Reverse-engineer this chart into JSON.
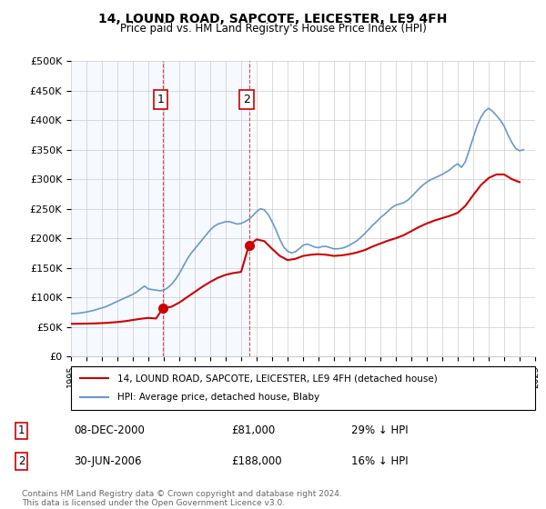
{
  "title": "14, LOUND ROAD, SAPCOTE, LEICESTER, LE9 4FH",
  "subtitle": "Price paid vs. HM Land Registry's House Price Index (HPI)",
  "xlabel": "",
  "ylabel": "",
  "ylim": [
    0,
    500000
  ],
  "yticks": [
    0,
    50000,
    100000,
    150000,
    200000,
    250000,
    300000,
    350000,
    400000,
    450000,
    500000
  ],
  "ytick_labels": [
    "£0",
    "£50K",
    "£100K",
    "£150K",
    "£200K",
    "£250K",
    "£300K",
    "£350K",
    "£400K",
    "£450K",
    "£500K"
  ],
  "sale1_date": 2000.93,
  "sale1_price": 81000,
  "sale1_label": "1",
  "sale2_date": 2006.5,
  "sale2_price": 188000,
  "sale2_label": "2",
  "sale1_info": "08-DEC-2000",
  "sale1_price_str": "£81,000",
  "sale1_hpi": "29% ↓ HPI",
  "sale2_info": "30-JUN-2006",
  "sale2_price_str": "£188,000",
  "sale2_hpi": "16% ↓ HPI",
  "property_label": "14, LOUND ROAD, SAPCOTE, LEICESTER, LE9 4FH (detached house)",
  "hpi_label": "HPI: Average price, detached house, Blaby",
  "line_color": "#cc0000",
  "hpi_color": "#6699cc",
  "copyright": "Contains HM Land Registry data © Crown copyright and database right 2024.\nThis data is licensed under the Open Government Licence v3.0.",
  "hpi_years": [
    1995.0,
    1995.25,
    1995.5,
    1995.75,
    1996.0,
    1996.25,
    1996.5,
    1996.75,
    1997.0,
    1997.25,
    1997.5,
    1997.75,
    1998.0,
    1998.25,
    1998.5,
    1998.75,
    1999.0,
    1999.25,
    1999.5,
    1999.75,
    2000.0,
    2000.25,
    2000.5,
    2000.75,
    2001.0,
    2001.25,
    2001.5,
    2001.75,
    2002.0,
    2002.25,
    2002.5,
    2002.75,
    2003.0,
    2003.25,
    2003.5,
    2003.75,
    2004.0,
    2004.25,
    2004.5,
    2004.75,
    2005.0,
    2005.25,
    2005.5,
    2005.75,
    2006.0,
    2006.25,
    2006.5,
    2006.75,
    2007.0,
    2007.25,
    2007.5,
    2007.75,
    2008.0,
    2008.25,
    2008.5,
    2008.75,
    2009.0,
    2009.25,
    2009.5,
    2009.75,
    2010.0,
    2010.25,
    2010.5,
    2010.75,
    2011.0,
    2011.25,
    2011.5,
    2011.75,
    2012.0,
    2012.25,
    2012.5,
    2012.75,
    2013.0,
    2013.25,
    2013.5,
    2013.75,
    2014.0,
    2014.25,
    2014.5,
    2014.75,
    2015.0,
    2015.25,
    2015.5,
    2015.75,
    2016.0,
    2016.25,
    2016.5,
    2016.75,
    2017.0,
    2017.25,
    2017.5,
    2017.75,
    2018.0,
    2018.25,
    2018.5,
    2018.75,
    2019.0,
    2019.25,
    2019.5,
    2019.75,
    2020.0,
    2020.25,
    2020.5,
    2020.75,
    2021.0,
    2021.25,
    2021.5,
    2021.75,
    2022.0,
    2022.25,
    2022.5,
    2022.75,
    2023.0,
    2023.25,
    2023.5,
    2023.75,
    2024.0,
    2024.25
  ],
  "hpi_values": [
    72000,
    72500,
    73000,
    74000,
    75000,
    76500,
    78000,
    80000,
    82000,
    84000,
    87000,
    90000,
    93000,
    96000,
    99000,
    102000,
    105000,
    109000,
    114000,
    119000,
    114000,
    113000,
    112000,
    111000,
    112000,
    116000,
    122000,
    130000,
    140000,
    152000,
    164000,
    174000,
    182000,
    190000,
    198000,
    206000,
    214000,
    220000,
    224000,
    226000,
    228000,
    228000,
    226000,
    224000,
    225000,
    228000,
    232000,
    238000,
    245000,
    250000,
    248000,
    240000,
    228000,
    214000,
    198000,
    185000,
    178000,
    175000,
    177000,
    182000,
    188000,
    190000,
    188000,
    185000,
    184000,
    186000,
    186000,
    184000,
    182000,
    182000,
    183000,
    185000,
    188000,
    192000,
    196000,
    202000,
    208000,
    215000,
    222000,
    228000,
    235000,
    240000,
    246000,
    252000,
    256000,
    258000,
    260000,
    264000,
    270000,
    277000,
    284000,
    290000,
    295000,
    299000,
    302000,
    305000,
    308000,
    312000,
    316000,
    322000,
    326000,
    320000,
    330000,
    350000,
    370000,
    390000,
    405000,
    415000,
    420000,
    415000,
    408000,
    400000,
    390000,
    375000,
    362000,
    352000,
    348000,
    350000
  ],
  "property_years": [
    1995.0,
    1995.5,
    1996.0,
    1996.5,
    1997.0,
    1997.5,
    1998.0,
    1998.5,
    1999.0,
    1999.5,
    2000.0,
    2000.5,
    2000.93,
    2000.93,
    2001.5,
    2002.0,
    2002.5,
    2003.0,
    2003.5,
    2004.0,
    2004.5,
    2005.0,
    2005.5,
    2006.0,
    2006.5,
    2006.5,
    2007.0,
    2007.5,
    2008.0,
    2008.5,
    2009.0,
    2009.5,
    2010.0,
    2010.5,
    2011.0,
    2011.5,
    2012.0,
    2012.5,
    2013.0,
    2013.5,
    2014.0,
    2014.5,
    2015.0,
    2015.5,
    2016.0,
    2016.5,
    2017.0,
    2017.5,
    2018.0,
    2018.5,
    2019.0,
    2019.5,
    2020.0,
    2020.5,
    2021.0,
    2021.5,
    2022.0,
    2022.5,
    2023.0,
    2023.5,
    2024.0
  ],
  "property_values": [
    55000,
    55200,
    55400,
    55700,
    56200,
    57000,
    58000,
    59500,
    61500,
    63500,
    65000,
    64000,
    81000,
    81000,
    84000,
    91000,
    100000,
    109000,
    118000,
    126000,
    133000,
    138000,
    141000,
    143000,
    188000,
    188000,
    198000,
    195000,
    182000,
    170000,
    163000,
    165000,
    170000,
    172000,
    173000,
    172000,
    170000,
    171000,
    173000,
    176000,
    180000,
    186000,
    191000,
    196000,
    200000,
    205000,
    212000,
    219000,
    225000,
    230000,
    234000,
    238000,
    243000,
    255000,
    273000,
    290000,
    302000,
    308000,
    308000,
    300000,
    295000
  ],
  "xmin": 1995,
  "xmax": 2025
}
